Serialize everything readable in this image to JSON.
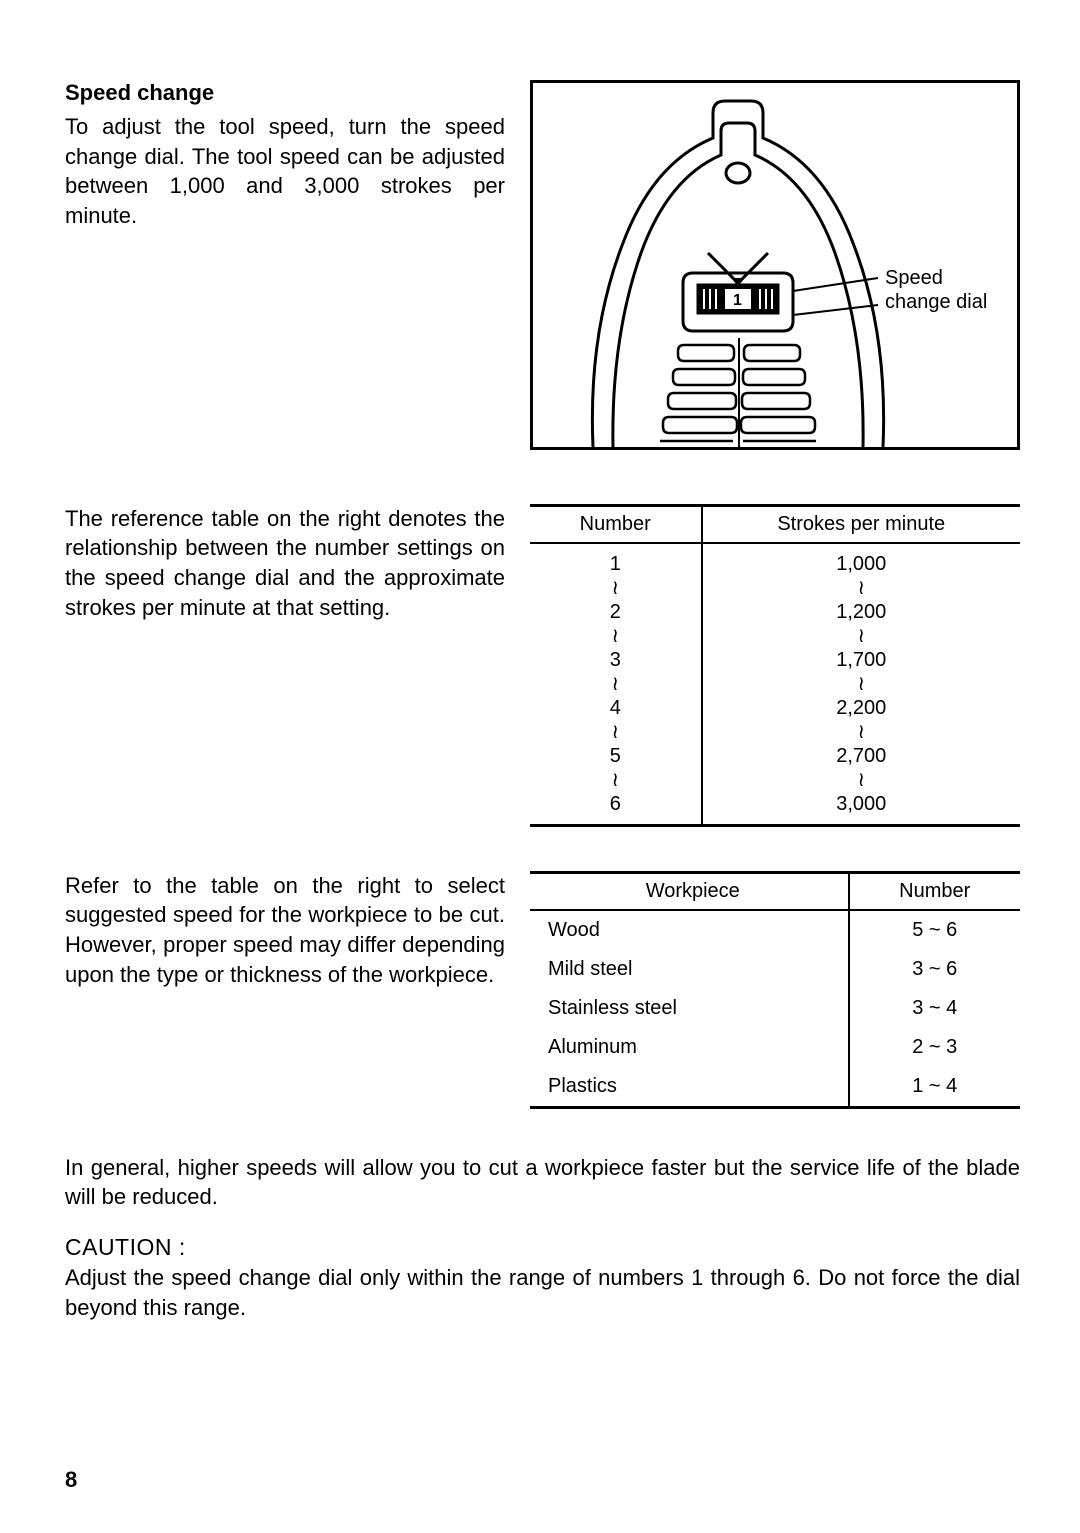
{
  "section1": {
    "title": "Speed change",
    "body": "To adjust the tool speed, turn the speed change dial. The tool speed can be adjusted between 1,000 and 3,000 strokes per minute."
  },
  "figure": {
    "label_line1": "Speed",
    "label_line2": "change dial",
    "dial_text": "1"
  },
  "section2": {
    "body": "The reference table on the right denotes the relationship between the number settings on the speed change dial and the approximate strokes per minute at that setting."
  },
  "strokes_table": {
    "head_left": "Number",
    "head_right": "Strokes per minute",
    "numbers": [
      "1",
      "≀",
      "2",
      "≀",
      "3",
      "≀",
      "4",
      "≀",
      "5",
      "≀",
      "6"
    ],
    "strokes": [
      "1,000",
      "≀",
      "1,200",
      "≀",
      "1,700",
      "≀",
      "2,200",
      "≀",
      "2,700",
      "≀",
      "3,000"
    ]
  },
  "section3": {
    "body": "Refer to the table on the right to select suggested speed for the workpiece to be cut. However, proper speed may differ depending upon the type or thickness of the workpiece."
  },
  "workpiece_table": {
    "head_left": "Workpiece",
    "head_right": "Number",
    "rows": [
      {
        "name": "Wood",
        "range": "5 ~ 6"
      },
      {
        "name": "Mild steel",
        "range": "3 ~ 6"
      },
      {
        "name": "Stainless steel",
        "range": "3 ~ 4"
      },
      {
        "name": "Aluminum",
        "range": "2 ~ 3"
      },
      {
        "name": "Plastics",
        "range": "1 ~ 4"
      }
    ]
  },
  "general_note": "In general, higher speeds will allow you to cut a workpiece faster but the service life of the blade will be reduced.",
  "caution": {
    "title": "CAUTION :",
    "body": "Adjust the speed change dial only within the range of numbers 1 through 6. Do not force the dial beyond this range."
  },
  "page_number": "8"
}
